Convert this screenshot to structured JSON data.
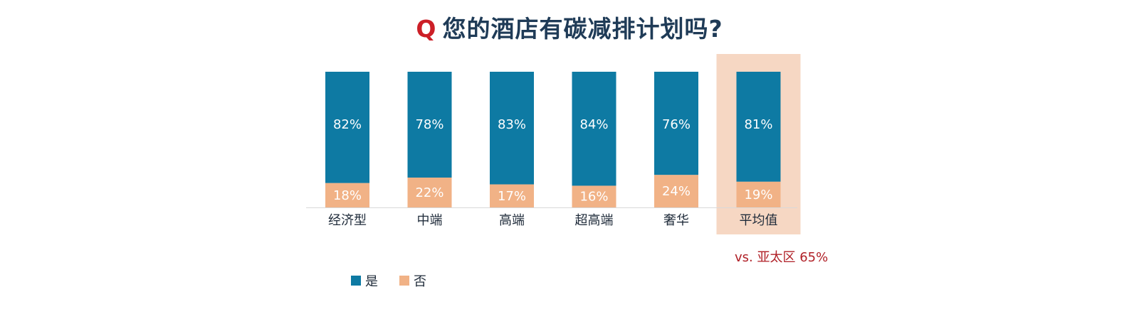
{
  "title": {
    "q_mark": "Q",
    "text": "您的酒店有碳减排计划吗?"
  },
  "colors": {
    "yes": "#0e7aa3",
    "no": "#f1b286",
    "highlight_bg": "#f6d7c3",
    "compare_text": "#b02027"
  },
  "chart_data": {
    "type": "bar",
    "stacked": true,
    "categories": [
      "经济型",
      "中端",
      "高端",
      "超高端",
      "奢华",
      "平均值"
    ],
    "series": [
      {
        "name": "是",
        "values": [
          82,
          78,
          83,
          84,
          76,
          81
        ],
        "labels": [
          "82%",
          "78%",
          "83%",
          "84%",
          "76%",
          "81%"
        ]
      },
      {
        "name": "否",
        "values": [
          18,
          22,
          17,
          16,
          24,
          19
        ],
        "labels": [
          "18%",
          "22%",
          "17%",
          "16%",
          "24%",
          "19%"
        ]
      }
    ],
    "ylim": [
      0,
      100
    ],
    "highlight_category": "平均值",
    "legend_position": "bottom-left",
    "grid": false
  },
  "comparison_note": "vs. 亚太区 65%"
}
